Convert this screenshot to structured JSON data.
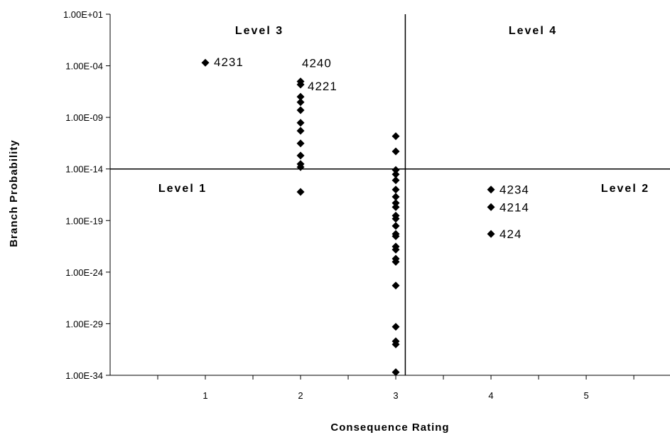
{
  "chart_data": {
    "type": "scatter",
    "xlabel": "Consequence Rating",
    "ylabel": "Branch Probability",
    "xlim": [
      0,
      5.88
    ],
    "ylim": [
      1e-34,
      10
    ],
    "y_scale": "log",
    "x_ticks": [
      1,
      2,
      3,
      4,
      5
    ],
    "y_ticks": [
      "1.00E+01",
      "1.00E-04",
      "1.00E-09",
      "1.00E-14",
      "1.00E-19",
      "1.00E-24",
      "1.00E-29",
      "1.00E-34"
    ],
    "grid": false,
    "dividers": {
      "x": 3.1,
      "y": 1e-14
    },
    "regions": [
      {
        "label": "Level 3",
        "position": "top-left"
      },
      {
        "label": "Level 4",
        "position": "top-right"
      },
      {
        "label": "Level 1",
        "position": "bottom-left"
      },
      {
        "label": "Level 2",
        "position": "bottom-right"
      }
    ],
    "marker": "diamond",
    "color": "#000000",
    "points": [
      {
        "x": 1,
        "y": 0.0002,
        "label": "4231"
      },
      {
        "x": 2,
        "y": 3e-06,
        "label": "4240"
      },
      {
        "x": 2,
        "y": 1.5e-06,
        "label": "4221"
      },
      {
        "x": 2,
        "y": 1e-07
      },
      {
        "x": 2,
        "y": 3e-08
      },
      {
        "x": 2,
        "y": 5e-09
      },
      {
        "x": 2,
        "y": 3e-10
      },
      {
        "x": 2,
        "y": 5e-11
      },
      {
        "x": 2,
        "y": 3e-12
      },
      {
        "x": 2,
        "y": 2e-13
      },
      {
        "x": 2,
        "y": 3e-14
      },
      {
        "x": 2,
        "y": 1.5e-14
      },
      {
        "x": 2,
        "y": 6e-17
      },
      {
        "x": 3,
        "y": 1.5e-11
      },
      {
        "x": 3,
        "y": 5e-13
      },
      {
        "x": 3,
        "y": 8e-15
      },
      {
        "x": 3,
        "y": 3e-15
      },
      {
        "x": 3,
        "y": 8e-16
      },
      {
        "x": 3,
        "y": 1e-16
      },
      {
        "x": 3,
        "y": 2e-17
      },
      {
        "x": 3,
        "y": 5e-18
      },
      {
        "x": 3,
        "y": 2e-18
      },
      {
        "x": 3,
        "y": 3e-19
      },
      {
        "x": 3,
        "y": 1.5e-19
      },
      {
        "x": 3,
        "y": 3e-20
      },
      {
        "x": 3,
        "y": 5e-21
      },
      {
        "x": 3,
        "y": 3e-21
      },
      {
        "x": 3,
        "y": 3e-22
      },
      {
        "x": 3,
        "y": 1.5e-22
      },
      {
        "x": 3,
        "y": 2e-23
      },
      {
        "x": 3,
        "y": 1e-23
      },
      {
        "x": 3,
        "y": 5e-26
      },
      {
        "x": 3,
        "y": 5e-30
      },
      {
        "x": 3,
        "y": 2e-31
      },
      {
        "x": 3,
        "y": 1e-31
      },
      {
        "x": 3,
        "y": 2e-34
      },
      {
        "x": 4,
        "y": 1e-16,
        "label": "4234"
      },
      {
        "x": 4,
        "y": 2e-18,
        "label": "4214"
      },
      {
        "x": 4,
        "y": 5e-21,
        "label": "424"
      }
    ]
  }
}
